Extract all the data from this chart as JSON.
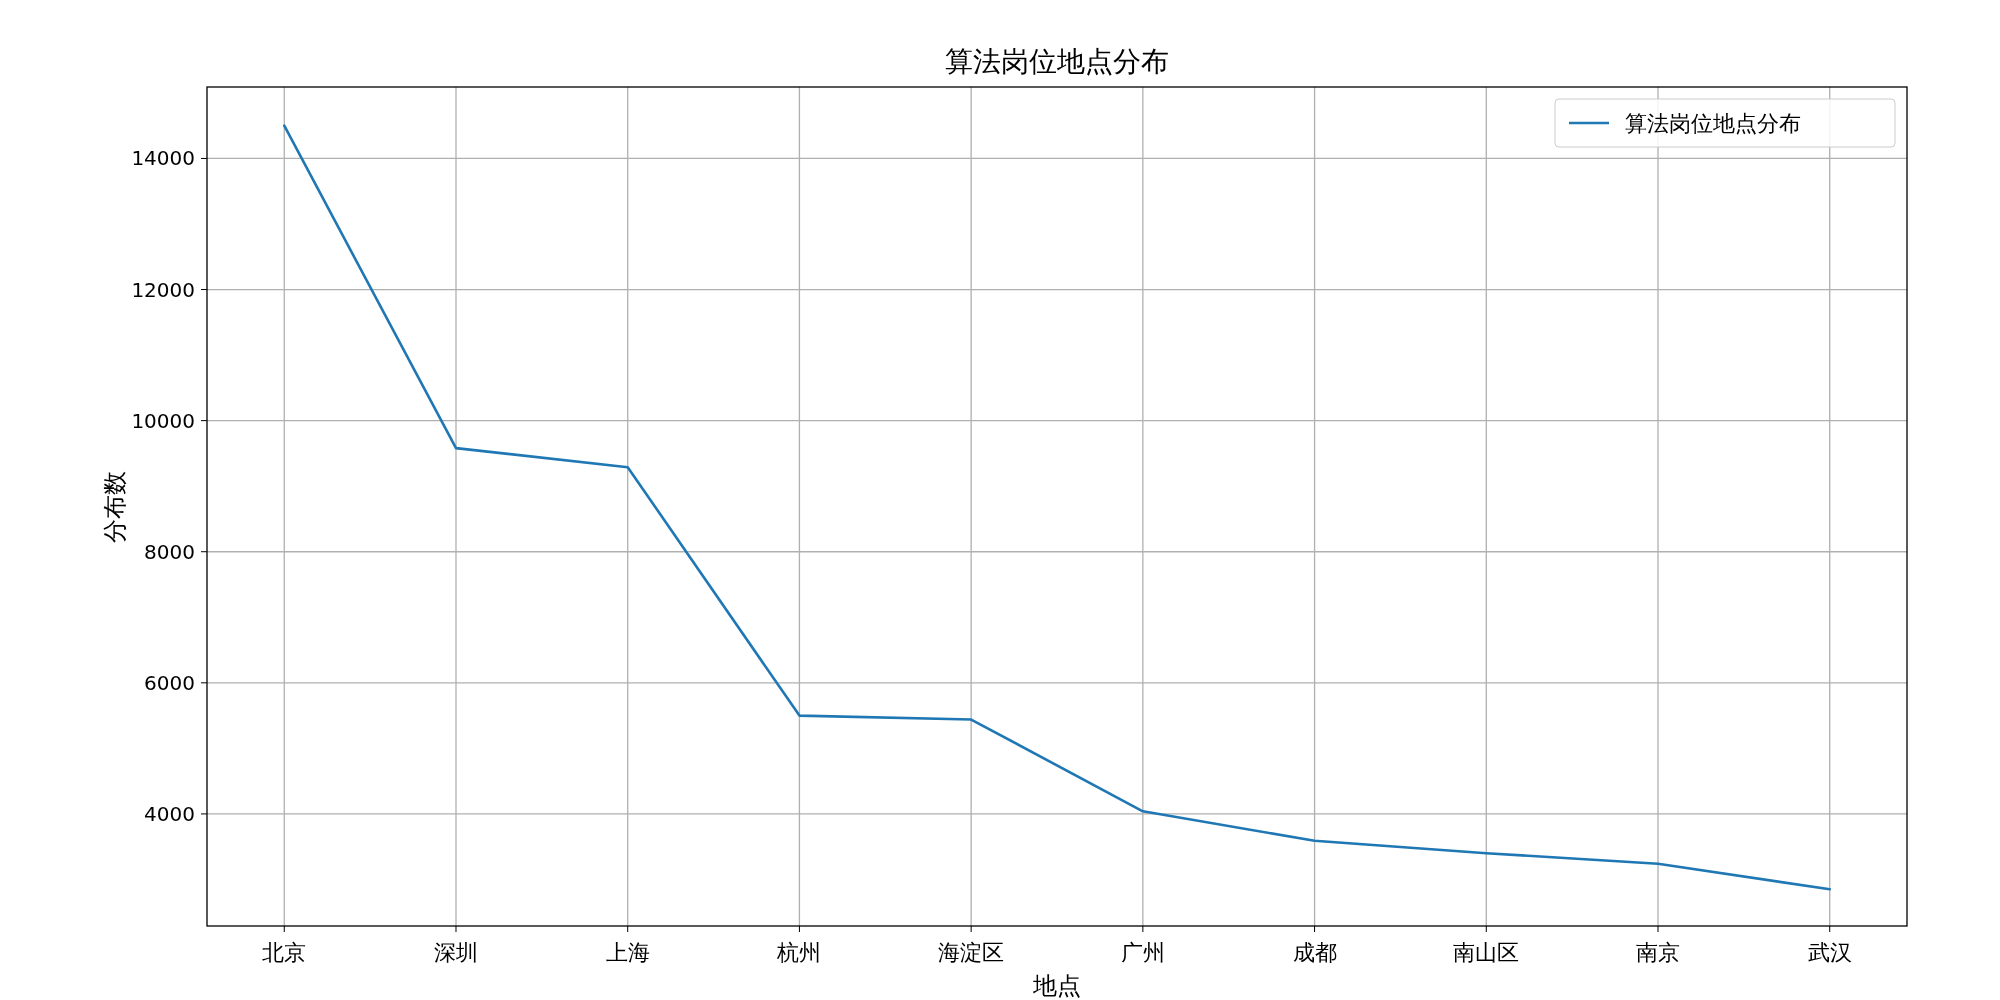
{
  "chart_data": {
    "type": "line",
    "title": "算法岗位地点分布",
    "xlabel": "地点",
    "ylabel": "分布数",
    "categories": [
      "北京",
      "深圳",
      "上海",
      "杭州",
      "海淀区",
      "广州",
      "成都",
      "南山区",
      "南京",
      "武汉"
    ],
    "series": [
      {
        "name": "算法岗位地点分布",
        "color": "#1f77b4",
        "values": [
          14500,
          9580,
          9290,
          5500,
          5440,
          4040,
          3590,
          3400,
          3240,
          2850
        ]
      }
    ],
    "ylim": [
      2290,
      15090
    ],
    "yticks": [
      4000,
      6000,
      8000,
      10000,
      12000,
      14000
    ],
    "grid": true,
    "legend": "top right",
    "marker": "none",
    "line_style": "solid"
  }
}
